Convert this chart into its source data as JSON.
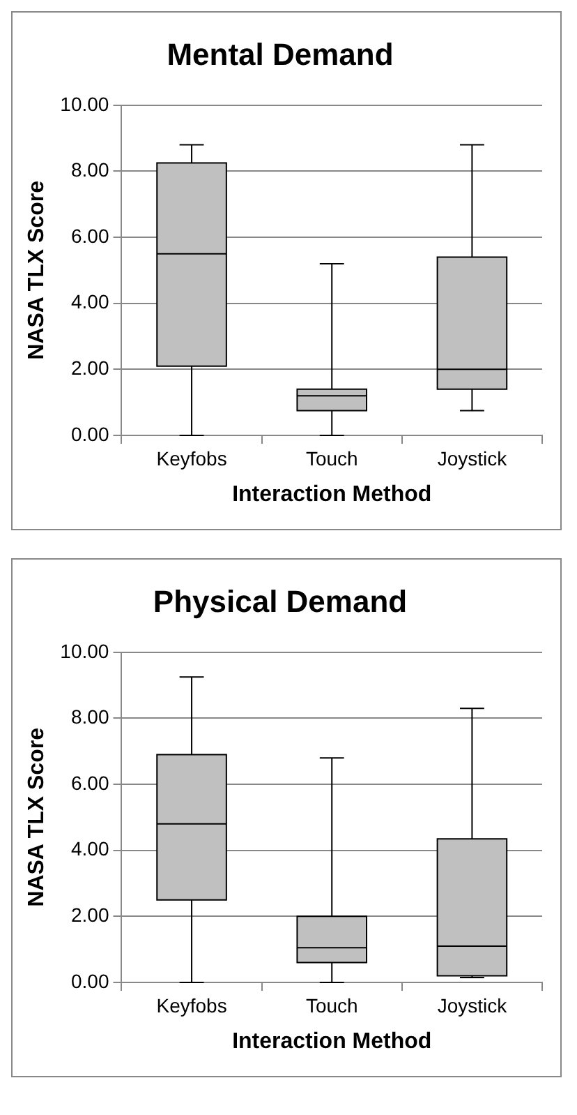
{
  "chart_data": [
    {
      "type": "box",
      "title": "Mental Demand",
      "xlabel": "Interaction Method",
      "ylabel": "NASA TLX Score",
      "categories": [
        "Keyfobs",
        "Touch",
        "Joystick"
      ],
      "color": "#c0c0c0",
      "grid": "y",
      "ylim": [
        0,
        10
      ],
      "yticks": [
        {
          "value": 0,
          "label": "0.00"
        },
        {
          "value": 2,
          "label": "2.00"
        },
        {
          "value": 4,
          "label": "4.00"
        },
        {
          "value": 6,
          "label": "6.00"
        },
        {
          "value": 8,
          "label": "8.00"
        },
        {
          "value": 10,
          "label": "10.00"
        }
      ],
      "boxes": [
        {
          "low": 0,
          "q1": 2.1,
          "median": 5.5,
          "q3": 8.25,
          "high": 8.8
        },
        {
          "low": 0,
          "q1": 0.75,
          "median": 1.2,
          "q3": 1.4,
          "high": 5.2
        },
        {
          "low": 0.75,
          "q1": 1.4,
          "median": 2.0,
          "q3": 5.4,
          "high": 8.8
        }
      ]
    },
    {
      "type": "box",
      "title": "Physical Demand",
      "xlabel": "Interaction Method",
      "ylabel": "NASA TLX Score",
      "categories": [
        "Keyfobs",
        "Touch",
        "Joystick"
      ],
      "color": "#c0c0c0",
      "grid": "y",
      "ylim": [
        0,
        10
      ],
      "yticks": [
        {
          "value": 0,
          "label": "0.00"
        },
        {
          "value": 2,
          "label": "2.00"
        },
        {
          "value": 4,
          "label": "4.00"
        },
        {
          "value": 6,
          "label": "6.00"
        },
        {
          "value": 8,
          "label": "8.00"
        },
        {
          "value": 10,
          "label": "10.00"
        }
      ],
      "boxes": [
        {
          "low": 0,
          "q1": 2.5,
          "median": 4.8,
          "q3": 6.9,
          "high": 9.25
        },
        {
          "low": 0,
          "q1": 0.6,
          "median": 1.05,
          "q3": 2.0,
          "high": 6.8
        },
        {
          "low": 0.15,
          "q1": 0.2,
          "median": 1.1,
          "q3": 4.35,
          "high": 8.3
        }
      ]
    }
  ]
}
